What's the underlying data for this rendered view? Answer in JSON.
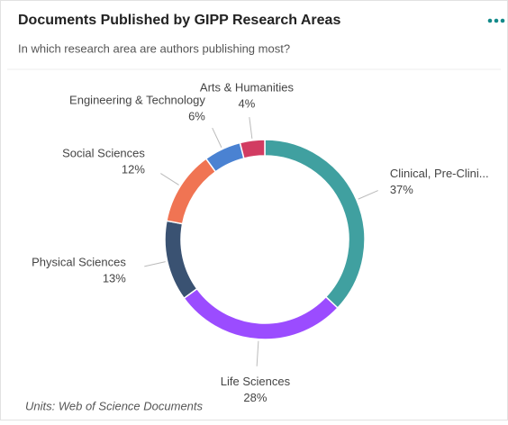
{
  "chart_data": {
    "type": "donut",
    "title": "Documents Published by GIPP Research Areas",
    "subtitle": "In which research area are authors publishing most?",
    "note": "Units: Web of Science Documents",
    "categories": [
      "Clinical, Pre-Clini...",
      "Life Sciences",
      "Physical Sciences",
      "Social Sciences",
      "Engineering & Technology",
      "Arts & Humanities"
    ],
    "values": [
      37,
      28,
      13,
      12,
      6,
      4
    ],
    "value_labels": [
      "37%",
      "28%",
      "13%",
      "12%",
      "6%",
      "4%"
    ],
    "colors": [
      "#40a0a0",
      "#9b4cff",
      "#3a5272",
      "#f07453",
      "#4a82d2",
      "#d23c62"
    ]
  }
}
